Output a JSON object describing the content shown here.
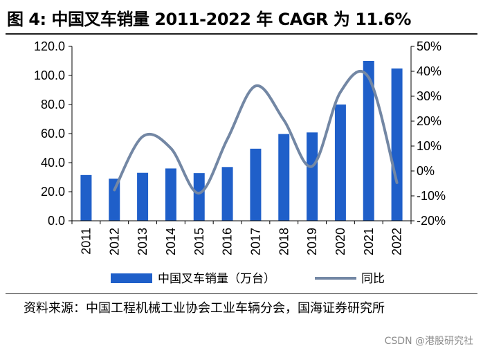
{
  "title": "图 4:  中国叉车销量 2011-2022 年 CAGR 为 11.6%",
  "source_note": "资料来源：中国工程机械工业协会工业车辆分会，国海证券研究所",
  "watermark": "CSDN @港股研究社",
  "colors": {
    "bar": "#1f5fc9",
    "line": "#7387a4",
    "axis": "#000000"
  },
  "chart_data": {
    "type": "bar",
    "title": "中国叉车销量 2011-2022 年 CAGR 为 11.6%",
    "categories": [
      "2011",
      "2012",
      "2013",
      "2014",
      "2015",
      "2016",
      "2017",
      "2018",
      "2019",
      "2020",
      "2021",
      "2022"
    ],
    "series": [
      {
        "name": "中国叉车销量（万台）",
        "type": "bar",
        "axis": "left",
        "values": [
          31.5,
          29.0,
          33.0,
          36.0,
          32.8,
          37.0,
          49.6,
          59.7,
          60.8,
          80.0,
          110.0,
          104.8
        ]
      },
      {
        "name": "同比",
        "type": "line",
        "axis": "right",
        "unit": "%",
        "values": [
          null,
          -7.6,
          13.8,
          9.1,
          -8.9,
          12.8,
          34.1,
          20.4,
          1.9,
          31.6,
          37.5,
          -4.7
        ]
      }
    ],
    "left_axis": {
      "ylim": [
        0,
        120
      ],
      "ticks": [
        "0.0",
        "20.0",
        "40.0",
        "60.0",
        "80.0",
        "100.0",
        "120.0"
      ]
    },
    "right_axis": {
      "ylim": [
        -20,
        50
      ],
      "ticks": [
        "-20%",
        "-10%",
        "0%",
        "10%",
        "20%",
        "30%",
        "40%",
        "50%"
      ]
    },
    "legend": {
      "position": "bottom",
      "entries": [
        "中国叉车销量（万台）",
        "同比"
      ]
    },
    "grid": false
  }
}
